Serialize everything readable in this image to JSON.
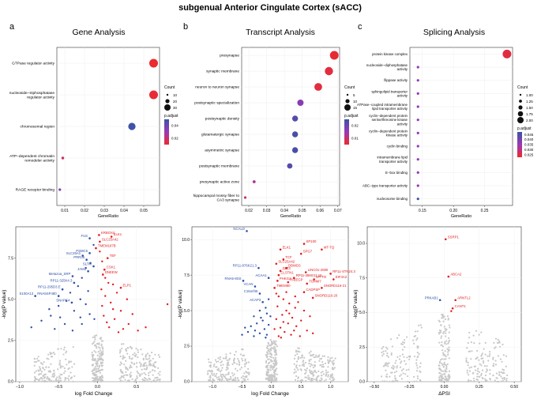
{
  "figure_title": "subgenual Anterior Cingulate Cortex (sACC)",
  "panel_letters": [
    "a",
    "b",
    "c"
  ],
  "colors": {
    "up": "#e41a1c",
    "down": "#2b4fa8",
    "ns": "#c8c8c8",
    "high": "#ee2a2a",
    "mid": "#9b38b5",
    "low": "#3b53a4"
  },
  "chart_data": [
    {
      "type": "scatter",
      "id": "gene_dot",
      "title": "Gene Analysis",
      "xlabel": "GeneRatio",
      "ylabel": "",
      "xlim": [
        0.006,
        0.058
      ],
      "xticks": [
        0.01,
        0.02,
        0.03,
        0.04,
        0.05
      ],
      "xtick_labels": [
        "0.01",
        "0.02",
        "0.03",
        "0.04",
        "0.05"
      ],
      "categories": [
        "GTPase regulator activity",
        "nucleoside−triphosphatase\nregulator activity",
        "chromosomal region",
        "ATP−dependent chromatin\nremodeler activity",
        "RAGE receptor binding"
      ],
      "x": [
        0.055,
        0.055,
        0.044,
        0.009,
        0.0075
      ],
      "count": [
        35,
        35,
        28,
        5,
        4
      ],
      "p_adjust": [
        0.005,
        0.006,
        0.055,
        0.014,
        0.038
      ],
      "legend_count_title": "Count",
      "legend_count_values": [
        "10",
        "20",
        "30"
      ],
      "legend_p_title": "p.adjust",
      "legend_p_values": [
        "0.04",
        "0.02"
      ],
      "p_range": [
        0.004,
        0.056
      ]
    },
    {
      "type": "scatter",
      "id": "transcript_dot",
      "title": "Transcript Analysis",
      "xlabel": "GeneRatio",
      "ylabel": "",
      "xlim": [
        0.016,
        0.071
      ],
      "xticks": [
        0.02,
        0.03,
        0.04,
        0.05,
        0.06,
        0.07
      ],
      "xtick_labels": [
        "0.02",
        "0.03",
        "0.04",
        "0.05",
        "0.06",
        "0.07"
      ],
      "categories": [
        "presynapse",
        "synaptic membrane",
        "neuron to neuron synapse",
        "postsynaptic specialization",
        "postsynaptic density",
        "glutamatergic synapse",
        "asymmetric synapse",
        "postsynaptic membrane",
        "presynaptic active zone",
        "hippocampal mossy fiber to\nCA3 synapse"
      ],
      "x": [
        0.068,
        0.065,
        0.059,
        0.049,
        0.046,
        0.046,
        0.046,
        0.043,
        0.023,
        0.018
      ],
      "count": [
        18,
        17,
        16,
        13,
        12,
        12,
        12,
        11,
        6,
        5
      ],
      "p_adjust": [
        0.003,
        0.004,
        0.004,
        0.02,
        0.028,
        0.03,
        0.03,
        0.028,
        0.014,
        0.009
      ],
      "legend_count_title": "Count",
      "legend_count_values": [
        "5",
        "10",
        "15"
      ],
      "legend_p_title": "p.adjust",
      "legend_p_values": [
        "0.02",
        "0.01"
      ],
      "p_range": [
        0.002,
        0.032
      ]
    },
    {
      "type": "scatter",
      "id": "splicing_dot",
      "title": "Splicing Analysis",
      "xlabel": "GeneRatio",
      "ylabel": "",
      "xlim": [
        0.13,
        0.295
      ],
      "xticks": [
        0.15,
        0.2,
        0.25
      ],
      "xtick_labels": [
        "0.15",
        "0.20",
        "0.25"
      ],
      "categories": [
        "protein kinase complex",
        "nucleoside−diphosphatase\nactivity",
        "flippase activity",
        "sphingolipid transporter\nactivity",
        "ATPase−coupled intramembrane\nlipid transporter activity",
        "cyclin−dependent protein\nserine/threonine kinase\nactivity",
        "cyclin−dependent protein\nkinase activity",
        "cyclin binding",
        "intramembrane lipid\ntransporter activity",
        "E−box binding",
        "ABC−type transporter activity",
        "nucleosome binding"
      ],
      "x": [
        0.286,
        0.143,
        0.143,
        0.143,
        0.143,
        0.143,
        0.143,
        0.143,
        0.143,
        0.143,
        0.143,
        0.143
      ],
      "count": [
        2,
        1,
        1,
        1,
        1,
        1,
        1,
        1,
        1,
        1,
        1,
        1
      ],
      "p_adjust": [
        0.026,
        0.037,
        0.037,
        0.037,
        0.037,
        0.037,
        0.037,
        0.037,
        0.037,
        0.037,
        0.037,
        0.048
      ],
      "legend_count_title": "Count",
      "legend_count_values": [
        "1.00",
        "1.25",
        "1.50",
        "1.75",
        "2.00"
      ],
      "legend_p_title": "p.adjust",
      "legend_p_values": [
        "0.045",
        "0.040",
        "0.035",
        "0.030",
        "0.025"
      ],
      "p_range": [
        0.024,
        0.048
      ]
    },
    {
      "type": "scatter",
      "id": "gene_volcano",
      "xlabel": "log Fold Change",
      "ylabel": "-log(P value)",
      "xlim": [
        -1.05,
        0.95
      ],
      "ylim": [
        0,
        9.4
      ],
      "xticks": [
        -1.0,
        -0.5,
        0.0,
        0.5
      ],
      "xtick_labels": [
        "−1.0",
        "−0.5",
        "0.0",
        "0.5"
      ],
      "yticks": [
        0,
        2.5,
        5,
        7.5
      ],
      "ytick_labels": [
        "0.0",
        "2.5",
        "5.0",
        "7.5"
      ],
      "threshold": 2.9,
      "labeled": [
        {
          "label": "KRBOX4",
          "x": 0.02,
          "y": 8.9,
          "group": "up"
        },
        {
          "label": "ELK1",
          "x": 0.18,
          "y": 8.8,
          "group": "up"
        },
        {
          "label": "FUS",
          "x": -0.1,
          "y": 8.7,
          "group": "down"
        },
        {
          "label": "SLC25A42",
          "x": 0.03,
          "y": 8.5,
          "group": "up"
        },
        {
          "label": "TMEM187B",
          "x": -0.02,
          "y": 8.1,
          "group": "up"
        },
        {
          "label": "PSMC5",
          "x": -0.1,
          "y": 7.8,
          "group": "down"
        },
        {
          "label": "SLC25A1",
          "x": -0.19,
          "y": 7.65,
          "group": "down"
        },
        {
          "label": "TEF",
          "x": 0.13,
          "y": 7.5,
          "group": "up"
        },
        {
          "label": "PRR35",
          "x": -0.14,
          "y": 7.4,
          "group": "down"
        },
        {
          "label": "SLTM",
          "x": -0.05,
          "y": 7.0,
          "group": "down"
        },
        {
          "label": "CSK1",
          "x": 0.09,
          "y": 6.8,
          "group": "up"
        },
        {
          "label": "JAM2",
          "x": -0.12,
          "y": 6.7,
          "group": "down"
        },
        {
          "label": "DNEEW",
          "x": 0.07,
          "y": 6.5,
          "group": "up"
        },
        {
          "label": "Metazoa_SRP",
          "x": -0.32,
          "y": 6.4,
          "group": "down"
        },
        {
          "label": "RP11-325K4.3",
          "x": -0.3,
          "y": 6.0,
          "group": "down"
        },
        {
          "label": "ELP1",
          "x": 0.3,
          "y": 5.7,
          "group": "up"
        },
        {
          "label": "RP11-295D3.E",
          "x": -0.45,
          "y": 5.6,
          "group": "down"
        },
        {
          "label": "S100A13",
          "x": -0.8,
          "y": 5.2,
          "group": "down"
        },
        {
          "label": "RNA5SP480",
          "x": -0.5,
          "y": 5.2,
          "group": "down"
        },
        {
          "label": "SNAPC4",
          "x": -0.33,
          "y": 4.8,
          "group": "down"
        }
      ],
      "extra_up": [
        [
          0.03,
          7.9
        ],
        [
          0.06,
          7.3
        ],
        [
          0.1,
          6.3
        ],
        [
          0.14,
          6.0
        ],
        [
          0.2,
          5.9
        ],
        [
          0.25,
          5.4
        ],
        [
          0.38,
          5.0
        ],
        [
          0.1,
          5.2
        ],
        [
          0.17,
          4.8
        ],
        [
          0.06,
          4.6
        ],
        [
          0.3,
          4.3
        ],
        [
          0.45,
          4.1
        ],
        [
          0.22,
          3.8
        ],
        [
          0.12,
          3.6
        ],
        [
          0.62,
          3.3
        ],
        [
          0.52,
          3.1
        ],
        [
          0.4,
          3.5
        ],
        [
          0.08,
          4.0
        ],
        [
          0.33,
          3.2
        ],
        [
          0.9,
          4.7
        ],
        [
          0.2,
          4.4
        ],
        [
          0.05,
          5.6
        ],
        [
          0.15,
          3.3
        ],
        [
          0.27,
          3.0
        ]
      ],
      "extra_down": [
        [
          -0.05,
          8.3
        ],
        [
          -0.09,
          7.2
        ],
        [
          -0.15,
          6.9
        ],
        [
          -0.2,
          6.3
        ],
        [
          -0.25,
          5.8
        ],
        [
          -0.12,
          5.5
        ],
        [
          -0.35,
          5.4
        ],
        [
          -0.22,
          5.0
        ],
        [
          -0.4,
          4.9
        ],
        [
          -0.5,
          4.6
        ],
        [
          -0.15,
          4.7
        ],
        [
          -0.3,
          4.3
        ],
        [
          -0.6,
          4.0
        ],
        [
          -0.22,
          3.9
        ],
        [
          -0.72,
          3.7
        ],
        [
          -0.42,
          3.5
        ],
        [
          -0.1,
          4.1
        ],
        [
          -0.55,
          3.2
        ],
        [
          -0.32,
          3.1
        ],
        [
          -0.85,
          3.3
        ],
        [
          -0.2,
          3.5
        ],
        [
          -0.62,
          4.4
        ],
        [
          -0.04,
          3.8
        ],
        [
          -0.48,
          3.9
        ]
      ],
      "ns_range": [
        [
          -0.9,
          0.9
        ]
      ],
      "ns_count": 520
    },
    {
      "type": "scatter",
      "id": "transcript_volcano",
      "xlabel": "log Fold Change",
      "ylabel": "-log(P value)",
      "xlim": [
        -1.35,
        1.3
      ],
      "ylim": [
        0,
        10.9
      ],
      "xticks": [
        -1.0,
        -0.5,
        0.0,
        0.5,
        1.0
      ],
      "xtick_labels": [
        "−1.0",
        "−0.5",
        "0.0",
        "0.5",
        "1.0"
      ],
      "yticks": [
        0,
        2.5,
        5,
        7.5,
        10
      ],
      "ytick_labels": [
        "0.0",
        "2.5",
        "5.0",
        "7.5",
        "10.0"
      ],
      "threshold": 3.0,
      "labeled": [
        {
          "label": "NCALD",
          "x": -0.42,
          "y": 10.6,
          "group": "down"
        },
        {
          "label": "SP100",
          "x": 0.55,
          "y": 9.7,
          "group": "up"
        },
        {
          "label": "ELK1",
          "x": 0.15,
          "y": 9.3,
          "group": "up"
        },
        {
          "label": "MT-TQ",
          "x": 0.85,
          "y": 9.3,
          "group": "up"
        },
        {
          "label": "SPG7",
          "x": 0.5,
          "y": 9.0,
          "group": "up"
        },
        {
          "label": "TCF",
          "x": 0.2,
          "y": 8.6,
          "group": "up"
        },
        {
          "label": "SLC25A42",
          "x": 0.08,
          "y": 8.3,
          "group": "up"
        },
        {
          "label": "RP11-876K21.3",
          "x": -0.22,
          "y": 8.0,
          "group": "down"
        },
        {
          "label": "DBWD3",
          "x": 0.25,
          "y": 8.0,
          "group": "up"
        },
        {
          "label": "ZZZ3",
          "x": 0.15,
          "y": 7.8,
          "group": "up"
        },
        {
          "label": "LINC01-2080",
          "x": 0.58,
          "y": 7.7,
          "group": "up"
        },
        {
          "label": "RP11-STN24.3",
          "x": 1.0,
          "y": 7.6,
          "group": "up"
        },
        {
          "label": "CLSTN1",
          "x": 0.12,
          "y": 7.5,
          "group": "up"
        },
        {
          "label": "ACAA1",
          "x": -0.05,
          "y": 7.3,
          "group": "down"
        },
        {
          "label": "RP11-286G11.16",
          "x": 0.38,
          "y": 7.3,
          "group": "up"
        },
        {
          "label": "MT-TD",
          "x": 0.72,
          "y": 7.2,
          "group": "up"
        },
        {
          "label": "EIF4A2",
          "x": 1.05,
          "y": 7.2,
          "group": "up"
        },
        {
          "label": "RNA5-8SS",
          "x": -0.48,
          "y": 7.1,
          "group": "down"
        },
        {
          "label": "PHKG2",
          "x": 0.1,
          "y": 7.1,
          "group": "up"
        },
        {
          "label": "RIBEGP",
          "x": 0.28,
          "y": 7.0,
          "group": "up"
        },
        {
          "label": "TOMM7",
          "x": 0.6,
          "y": 6.9,
          "group": "up"
        },
        {
          "label": "VCAN",
          "x": -0.28,
          "y": 6.7,
          "group": "down"
        },
        {
          "label": "TMEM80",
          "x": 0.05,
          "y": 6.6,
          "group": "up"
        },
        {
          "label": "SNORD116-21",
          "x": 0.85,
          "y": 6.6,
          "group": "up"
        },
        {
          "label": "CADPSP",
          "x": 0.55,
          "y": 6.3,
          "group": "up"
        },
        {
          "label": "C16orf45",
          "x": -0.2,
          "y": 6.2,
          "group": "down"
        },
        {
          "label": "SNORD116-20",
          "x": 0.7,
          "y": 5.9,
          "group": "up"
        },
        {
          "label": "ACAP3",
          "x": -0.15,
          "y": 5.6,
          "group": "down"
        }
      ],
      "extra_up": [
        [
          0.12,
          6.0
        ],
        [
          0.2,
          5.8
        ],
        [
          0.3,
          5.5
        ],
        [
          0.4,
          5.2
        ],
        [
          0.1,
          5.3
        ],
        [
          0.25,
          5.0
        ],
        [
          0.18,
          4.7
        ],
        [
          0.35,
          4.5
        ],
        [
          0.5,
          4.3
        ],
        [
          0.08,
          4.4
        ],
        [
          0.28,
          4.1
        ],
        [
          0.42,
          3.9
        ],
        [
          0.15,
          3.8
        ],
        [
          0.6,
          3.6
        ],
        [
          0.22,
          3.5
        ],
        [
          0.05,
          3.7
        ],
        [
          0.33,
          3.3
        ],
        [
          0.48,
          3.2
        ],
        [
          0.12,
          3.2
        ],
        [
          0.7,
          3.4
        ],
        [
          0.25,
          6.3
        ],
        [
          0.4,
          6.0
        ],
        [
          0.55,
          5.0
        ],
        [
          0.08,
          6.2
        ],
        [
          0.3,
          4.8
        ],
        [
          0.65,
          4.6
        ],
        [
          0.2,
          4.2
        ],
        [
          0.45,
          5.6
        ],
        [
          0.16,
          3.1
        ],
        [
          0.38,
          3.6
        ]
      ],
      "extra_down": [
        [
          -0.05,
          5.8
        ],
        [
          -0.1,
          5.2
        ],
        [
          -0.2,
          5.0
        ],
        [
          -0.08,
          4.8
        ],
        [
          -0.3,
          4.6
        ],
        [
          -0.15,
          4.3
        ],
        [
          -0.25,
          4.1
        ],
        [
          -0.05,
          4.0
        ],
        [
          -0.35,
          3.9
        ],
        [
          -0.12,
          3.7
        ],
        [
          -0.4,
          3.5
        ],
        [
          -0.2,
          3.4
        ],
        [
          -0.08,
          3.3
        ],
        [
          -0.3,
          3.2
        ],
        [
          -0.5,
          3.3
        ],
        [
          -0.45,
          3.8
        ],
        [
          -0.18,
          4.5
        ],
        [
          -0.02,
          4.6
        ],
        [
          -0.28,
          3.6
        ],
        [
          -0.1,
          3.1
        ]
      ],
      "ns_range": [
        [
          -1.0,
          1.2
        ]
      ],
      "ns_count": 560
    },
    {
      "type": "scatter",
      "id": "splicing_volcano",
      "xlabel": "ΔPSI",
      "ylabel": "-log(P value)",
      "xlim": [
        -0.55,
        0.55
      ],
      "ylim": [
        0,
        11.2
      ],
      "xticks": [
        -0.5,
        -0.25,
        0.0,
        0.25,
        0.5
      ],
      "xtick_labels": [
        "−0.50",
        "−0.25",
        "0.00",
        "0.25",
        "0.50"
      ],
      "yticks": [
        0,
        2.5,
        5,
        7.5,
        10
      ],
      "ytick_labels": [
        "0.0",
        "2.5",
        "5.0",
        "7.5",
        "10.0"
      ],
      "threshold": 5.0,
      "labeled": [
        {
          "label": "SSRP1",
          "x": 0.01,
          "y": 10.3,
          "group": "up"
        },
        {
          "label": "ABCA2",
          "x": 0.03,
          "y": 7.6,
          "group": "up"
        },
        {
          "label": "PRKAB1",
          "x": -0.03,
          "y": 5.9,
          "group": "down"
        },
        {
          "label": "ARNTL2",
          "x": 0.08,
          "y": 5.9,
          "group": "up"
        },
        {
          "label": "CANT1",
          "x": 0.06,
          "y": 5.3,
          "group": "up"
        }
      ],
      "extra_up": [
        [
          0.05,
          5.1
        ]
      ],
      "extra_down": [],
      "ns_range": [
        [
          -0.45,
          0.5
        ]
      ],
      "ns_count": 420
    }
  ]
}
